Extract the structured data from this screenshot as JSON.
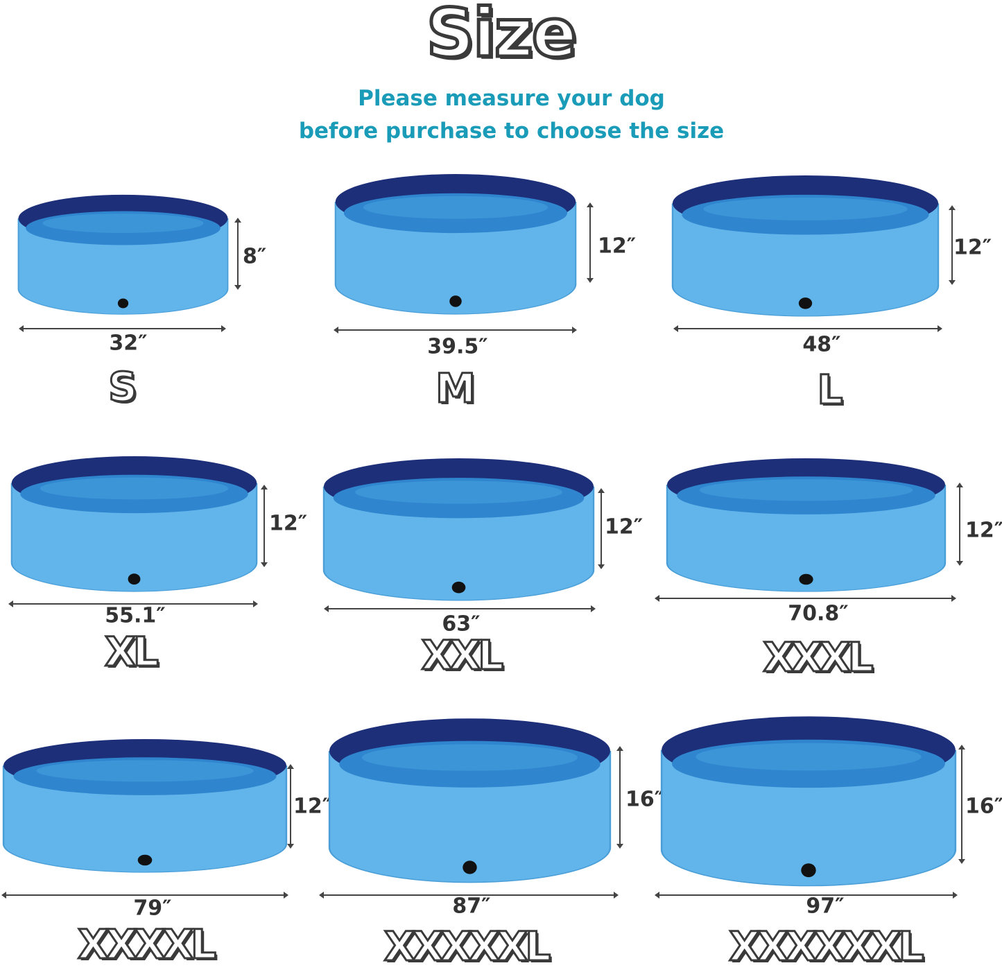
{
  "title": "Size",
  "subtitle_line1": "Please measure your dog",
  "subtitle_line2": "before purchase to choose the size",
  "colors": {
    "rim": "#1e2f7a",
    "water": "#2f86cf",
    "body": "#62b5ea",
    "subtitle": "#1a9cb8"
  },
  "sizes": [
    {
      "label": "S",
      "diameter": "32″",
      "height": "8″"
    },
    {
      "label": "M",
      "diameter": "39.5″",
      "height": "12″"
    },
    {
      "label": "L",
      "diameter": "48″",
      "height": "12″"
    },
    {
      "label": "XL",
      "diameter": "55.1″",
      "height": "12″"
    },
    {
      "label": "XXL",
      "diameter": "63″",
      "height": "12″"
    },
    {
      "label": "XXXL",
      "diameter": "70.8″",
      "height": "12″"
    },
    {
      "label": "XXXXL",
      "diameter": "79″",
      "height": "12″"
    },
    {
      "label": "XXXXXL",
      "diameter": "87″",
      "height": "16″"
    },
    {
      "label": "XXXXXXL",
      "diameter": "97″",
      "height": "16″"
    }
  ]
}
